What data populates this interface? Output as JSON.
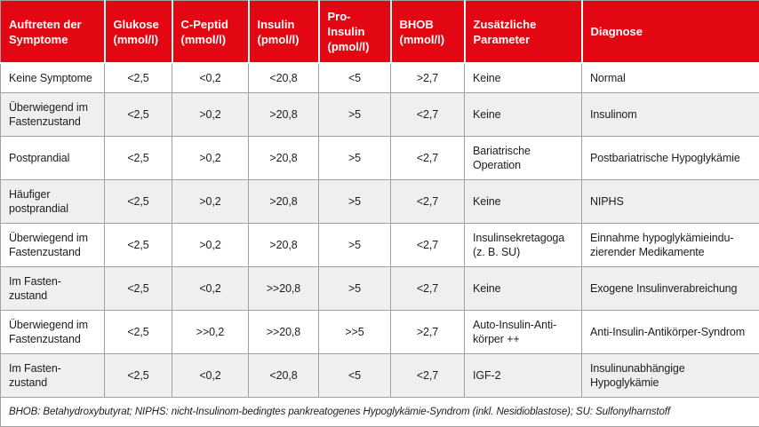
{
  "colors": {
    "header_bg": "#e30613",
    "header_text": "#ffffff",
    "row_alt_bg": "#efefef",
    "border": "#a1a1a1",
    "text": "#1d1d1b"
  },
  "table": {
    "columns": [
      {
        "label": "Auftreten der\nSymptome"
      },
      {
        "label": "Glukose\n(mmol/l)"
      },
      {
        "label": "C-Peptid\n(mmol/l)"
      },
      {
        "label": "Insulin\n(pmol/l)"
      },
      {
        "label": "Pro-Insulin\n(pmol/l)"
      },
      {
        "label": "BHOB\n(mmol/l)"
      },
      {
        "label": "Zusätzliche\nParameter"
      },
      {
        "label": "Diagnose"
      }
    ],
    "rows": [
      {
        "cells": [
          "Keine Symptome",
          "<2,5",
          "<0,2",
          "<20,8",
          "<5",
          ">2,7",
          "Keine",
          "Normal"
        ]
      },
      {
        "cells": [
          "Überwiegend im\nFastenzustand",
          "<2,5",
          ">0,2",
          ">20,8",
          ">5",
          "<2,7",
          "Keine",
          "Insulinom"
        ]
      },
      {
        "cells": [
          "Postprandial",
          "<2,5",
          ">0,2",
          ">20,8",
          ">5",
          "<2,7",
          "Bariatrische\nOperation",
          "Postbariatrische Hypoglykämie"
        ]
      },
      {
        "cells": [
          "Häufiger\npostprandial",
          "<2,5",
          ">0,2",
          ">20,8",
          ">5",
          "<2,7",
          "Keine",
          "NIPHS"
        ]
      },
      {
        "cells": [
          "Überwiegend im\nFastenzustand",
          "<2,5",
          ">0,2",
          ">20,8",
          ">5",
          "<2,7",
          "Insulinsekretagoga\n(z. B. SU)",
          "Einnahme hypoglykämieindu-\nzierender Medikamente"
        ]
      },
      {
        "cells": [
          "Im Fasten-\nzustand",
          "<2,5",
          "<0,2",
          ">>20,8",
          ">5",
          "<2,7",
          "Keine",
          "Exogene Insulinverabreichung"
        ]
      },
      {
        "cells": [
          "Überwiegend im\nFastenzustand",
          "<2,5",
          ">>0,2",
          ">>20,8",
          ">>5",
          ">2,7",
          "Auto-Insulin-Anti-\nkörper ++",
          "Anti-Insulin-Antikörper-Syndrom"
        ]
      },
      {
        "cells": [
          "Im Fasten-\nzustand",
          "<2,5",
          "<0,2",
          "<20,8",
          "<5",
          "<2,7",
          "IGF-2",
          "Insulinunabhängige\nHypoglykämie"
        ]
      }
    ],
    "numeric_column_indexes": [
      1,
      2,
      3,
      4,
      5
    ],
    "footnote": "BHOB: Betahydroxybutyrat; NIPHS: nicht-Insulinom-bedingtes pankreatogenes Hypoglykämie-Syndrom (inkl. Nesidioblastose); SU: Sulfonylharnstoff"
  }
}
